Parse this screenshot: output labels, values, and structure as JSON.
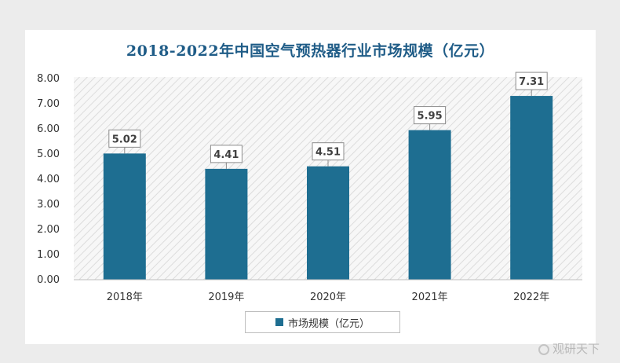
{
  "chart_data": {
    "type": "bar",
    "title": "2018-2022年中国空气预热器行业市场规模（亿元）",
    "categories": [
      "2018年",
      "2019年",
      "2020年",
      "2021年",
      "2022年"
    ],
    "series": [
      {
        "name": "市场规模（亿元）",
        "values": [
          5.02,
          4.41,
          4.51,
          5.95,
          7.31
        ]
      }
    ],
    "data_labels": [
      "5.02",
      "4.41",
      "4.51",
      "5.95",
      "7.31"
    ],
    "yticks": [
      "0.00",
      "1.00",
      "2.00",
      "3.00",
      "4.00",
      "5.00",
      "6.00",
      "7.00",
      "8.00"
    ],
    "ylim": [
      0,
      8
    ],
    "grid": false,
    "legend_position": "bottom",
    "bar_color": "#1e6e91",
    "plot_background": "hatched-gray"
  },
  "watermark": "观研天下"
}
